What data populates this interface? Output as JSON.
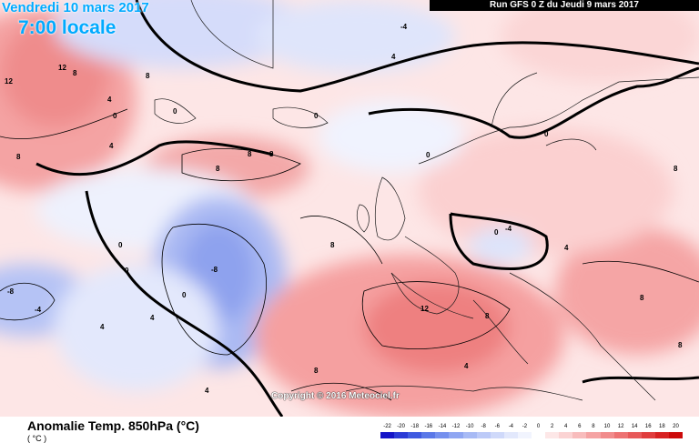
{
  "header": {
    "date_label": "Vendredi 10 mars 2017",
    "time_label": "7:00 locale",
    "run_label": "Run GFS 0 Z du Jeudi 9 mars 2017"
  },
  "map": {
    "copyright": "Copyright © 2016 Meteociel.fr",
    "contour_labels": [
      "12",
      "12",
      "8",
      "8",
      "8",
      "4",
      "4",
      "4",
      "0",
      "0",
      "0",
      "-4",
      "-4",
      "-8",
      "-8",
      "8",
      "8",
      "8",
      "4",
      "4",
      "4",
      "0",
      "0",
      "0",
      "0",
      "8",
      "12",
      "8",
      "8",
      "4",
      "0",
      "-4",
      "4",
      "0",
      "8",
      "8",
      "8"
    ]
  },
  "footer": {
    "title": "Anomalie Temp. 850hPa (°C)",
    "subtitle": "( °C )"
  },
  "legend": {
    "ticks": [
      "-22",
      "-20",
      "-18",
      "-16",
      "-14",
      "-12",
      "-10",
      "-8",
      "-6",
      "-4",
      "-2",
      "0",
      "2",
      "4",
      "6",
      "8",
      "10",
      "12",
      "14",
      "16",
      "18",
      "20"
    ],
    "colors": [
      "#1414c8",
      "#2a3ad6",
      "#3f5ae0",
      "#5a78e8",
      "#7590ee",
      "#8fa6f2",
      "#a7baf5",
      "#bccaf8",
      "#cfd9fa",
      "#e2e8fc",
      "#f1f4fe",
      "#ffffff",
      "#fde7e7",
      "#fbd3d3",
      "#f8bcbc",
      "#f5a3a3",
      "#f18b8b",
      "#ed7272",
      "#e75959",
      "#e03d3d",
      "#d72222",
      "#cc0a0a"
    ]
  }
}
